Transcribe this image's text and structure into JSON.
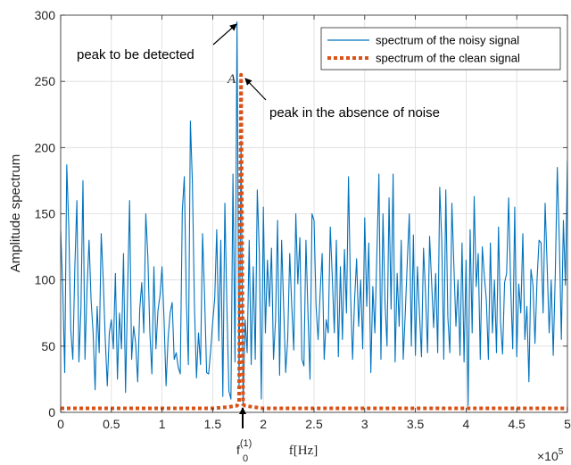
{
  "chart_data": {
    "type": "line",
    "title": "",
    "xlabel": "f[Hz]",
    "ylabel": "Amplitude spectrum",
    "xlim": [
      0,
      5
    ],
    "ylim": [
      0,
      300
    ],
    "x_multiplier": "×10",
    "x_multiplier_exp": "5",
    "grid": true,
    "legend_position": "top-right",
    "xticks": [
      0,
      0.5,
      1,
      1.5,
      2,
      2.5,
      3,
      3.5,
      4,
      4.5,
      5
    ],
    "xtick_labels": [
      "0",
      "0.5",
      "1",
      "1.5",
      "2",
      "2.5",
      "3",
      "3.5",
      "4",
      "4.5",
      "5"
    ],
    "yticks": [
      0,
      50,
      100,
      150,
      200,
      250,
      300
    ],
    "ytick_labels": [
      "0",
      "50",
      "100",
      "150",
      "200",
      "250",
      "300"
    ],
    "series": [
      {
        "name": "spectrum of the noisy signal",
        "color": "#0072BD",
        "style": "solid",
        "x": [
          0,
          0.02,
          0.04,
          0.06,
          0.08,
          0.1,
          0.12,
          0.14,
          0.16,
          0.18,
          0.2,
          0.22,
          0.24,
          0.26,
          0.28,
          0.3,
          0.32,
          0.34,
          0.36,
          0.38,
          0.4,
          0.42,
          0.44,
          0.46,
          0.48,
          0.5,
          0.52,
          0.54,
          0.56,
          0.58,
          0.6,
          0.62,
          0.64,
          0.66,
          0.68,
          0.7,
          0.72,
          0.74,
          0.76,
          0.78,
          0.8,
          0.82,
          0.84,
          0.86,
          0.88,
          0.9,
          0.92,
          0.94,
          0.96,
          0.98,
          1.0,
          1.02,
          1.04,
          1.06,
          1.08,
          1.1,
          1.12,
          1.14,
          1.16,
          1.18,
          1.2,
          1.22,
          1.24,
          1.26,
          1.28,
          1.3,
          1.32,
          1.34,
          1.36,
          1.38,
          1.4,
          1.42,
          1.44,
          1.46,
          1.48,
          1.5,
          1.52,
          1.54,
          1.56,
          1.58,
          1.6,
          1.62,
          1.64,
          1.66,
          1.68,
          1.7,
          1.72,
          1.74,
          1.76,
          1.78,
          1.8,
          1.82,
          1.84,
          1.86,
          1.88,
          1.9,
          1.92,
          1.94,
          1.96,
          1.98,
          2.0,
          2.02,
          2.04,
          2.06,
          2.08,
          2.1,
          2.12,
          2.14,
          2.16,
          2.18,
          2.2,
          2.22,
          2.24,
          2.26,
          2.28,
          2.3,
          2.32,
          2.34,
          2.36,
          2.38,
          2.4,
          2.42,
          2.44,
          2.46,
          2.48,
          2.5,
          2.52,
          2.54,
          2.56,
          2.58,
          2.6,
          2.62,
          2.64,
          2.66,
          2.68,
          2.7,
          2.72,
          2.74,
          2.76,
          2.78,
          2.8,
          2.82,
          2.84,
          2.86,
          2.88,
          2.9,
          2.92,
          2.94,
          2.96,
          2.98,
          3.0,
          3.02,
          3.04,
          3.06,
          3.08,
          3.1,
          3.12,
          3.14,
          3.16,
          3.18,
          3.2,
          3.22,
          3.24,
          3.26,
          3.28,
          3.3,
          3.32,
          3.34,
          3.36,
          3.38,
          3.4,
          3.42,
          3.44,
          3.46,
          3.48,
          3.5,
          3.52,
          3.54,
          3.56,
          3.58,
          3.6,
          3.62,
          3.64,
          3.66,
          3.68,
          3.7,
          3.72,
          3.74,
          3.76,
          3.78,
          3.8,
          3.82,
          3.84,
          3.86,
          3.88,
          3.9,
          3.92,
          3.94,
          3.96,
          3.98,
          4.0,
          4.02,
          4.04,
          4.06,
          4.08,
          4.1,
          4.12,
          4.14,
          4.16,
          4.18,
          4.2,
          4.22,
          4.24,
          4.26,
          4.28,
          4.3,
          4.32,
          4.34,
          4.36,
          4.38,
          4.4,
          4.42,
          4.44,
          4.46,
          4.48,
          4.5,
          4.52,
          4.54,
          4.56,
          4.58,
          4.6,
          4.62,
          4.64,
          4.66,
          4.68,
          4.7,
          4.72,
          4.74,
          4.76,
          4.78,
          4.8,
          4.82,
          4.84,
          4.86,
          4.88,
          4.9,
          4.92,
          4.94,
          4.96,
          4.98,
          5.0
        ],
        "values": [
          137,
          95,
          30,
          187,
          140,
          62,
          40,
          110,
          160,
          38,
          78,
          175,
          40,
          93,
          130,
          85,
          60,
          17,
          80,
          45,
          135,
          100,
          55,
          20,
          60,
          70,
          48,
          105,
          25,
          75,
          48,
          120,
          15,
          90,
          160,
          40,
          65,
          52,
          23,
          78,
          98,
          60,
          150,
          118,
          60,
          29,
          110,
          48,
          77,
          88,
          110,
          70,
          20,
          56,
          75,
          83,
          40,
          45,
          34,
          29,
          152,
          178,
          85,
          36,
          220,
          173,
          80,
          26,
          60,
          36,
          135,
          88,
          30,
          29,
          47,
          68,
          86,
          138,
          54,
          130,
          12,
          158,
          80,
          16,
          10,
          180,
          38,
          295,
          20,
          205,
          5,
          70,
          45,
          130,
          36,
          110,
          40,
          168,
          120,
          10,
          155,
          60,
          115,
          80,
          124,
          40,
          70,
          145,
          28,
          130,
          80,
          30,
          55,
          120,
          80,
          47,
          150,
          97,
          132,
          40,
          35,
          130,
          75,
          25,
          150,
          145,
          80,
          55,
          90,
          120,
          40,
          70,
          60,
          140,
          102,
          60,
          130,
          42,
          110,
          55,
          123,
          75,
          178,
          90,
          40,
          85,
          116,
          65,
          100,
          48,
          147,
          80,
          128,
          30,
          95,
          60,
          120,
          180,
          40,
          150,
          83,
          50,
          162,
          78,
          180,
          38,
          105,
          65,
          130,
          40,
          75,
          114,
          150,
          50,
          134,
          43,
          110,
          75,
          42,
          124,
          90,
          45,
          133,
          98,
          64,
          105,
          45,
          170,
          130,
          40,
          168,
          72,
          45,
          158,
          110,
          65,
          100,
          43,
          128,
          38,
          115,
          5,
          138,
          60,
          163,
          95,
          120,
          40,
          125,
          103,
          85,
          40,
          128,
          60,
          100,
          45,
          140,
          68,
          44,
          98,
          105,
          162,
          96,
          48,
          155,
          42,
          97,
          75,
          135,
          55,
          80,
          23,
          108,
          96,
          52,
          100,
          130,
          128,
          75,
          158,
          110,
          60,
          100,
          43,
          104,
          185,
          130,
          55,
          145,
          96,
          190
        ]
      },
      {
        "name": "spectrum of the clean signal",
        "color": "#D95319",
        "style": "dotted",
        "x": [
          0,
          0.5,
          1,
          1.5,
          1.65,
          1.74,
          1.76,
          1.78,
          1.8,
          1.82,
          1.9,
          2.0,
          2.2,
          2.5,
          3,
          3.5,
          4,
          4.5,
          5
        ],
        "values": [
          3,
          3,
          3,
          3,
          4,
          5,
          8,
          255,
          6,
          5,
          4,
          3,
          3,
          3,
          3,
          3,
          3,
          3,
          3
        ]
      }
    ],
    "annotations": [
      {
        "text": "peak to be detected",
        "x": 1.78,
        "y": 295,
        "direction": "left"
      },
      {
        "text": "A",
        "x": 1.78,
        "y": 255,
        "direction": "left"
      },
      {
        "text": "peak in the absence of noise",
        "x": 1.78,
        "y": 255,
        "direction": "right"
      }
    ],
    "marker_label": {
      "base": "f",
      "subscript": "0",
      "superscript": "(1)",
      "x": 1.78
    }
  }
}
